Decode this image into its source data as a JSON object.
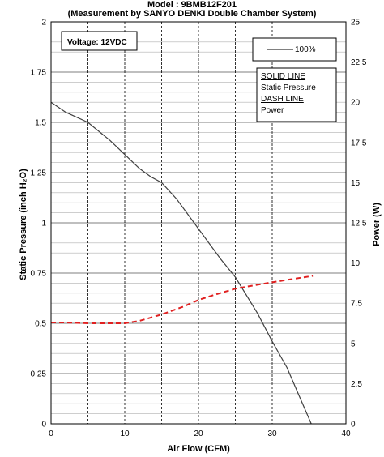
{
  "chart_data": {
    "type": "line",
    "title": "Model : 9BMB12F201",
    "subtitle": "(Measurement by SANYO DENKI Double Chamber System)",
    "xlabel": "Air Flow (CFM)",
    "ylabel_left": "Static Pressure (inch H₂O)",
    "ylabel_right": "Power (W)",
    "xlim": [
      0,
      40
    ],
    "ylim_left": [
      0,
      2
    ],
    "ylim_right": [
      0,
      25
    ],
    "x_ticks": [
      "0",
      "10",
      "20",
      "30",
      "40"
    ],
    "y_left_ticks": [
      "0",
      "0.25",
      "0.5",
      "0.75",
      "1",
      "1.25",
      "1.5",
      "1.75",
      "2"
    ],
    "y_right_ticks": [
      "0",
      "2.5",
      "5",
      "7.5",
      "10",
      "12.5",
      "15",
      "17.5",
      "20",
      "22.5",
      "25"
    ],
    "grid": true,
    "annotations": {
      "voltage": "Voltage: 12VDC",
      "legend_sample": "100%",
      "solid_line_header": "SOLID LINE",
      "solid_line_desc": "Static Pressure",
      "dash_line_header": "DASH LINE",
      "dash_line_desc": "Power"
    },
    "series": [
      {
        "name": "Static Pressure",
        "style": "solid",
        "color": "#404040",
        "axis": "left",
        "x": [
          0,
          2,
          5,
          8,
          10,
          12,
          13.5,
          15,
          17,
          20,
          23,
          25,
          28,
          30,
          32,
          34,
          35.3
        ],
        "y": [
          1.6,
          1.55,
          1.5,
          1.41,
          1.34,
          1.27,
          1.23,
          1.2,
          1.12,
          0.97,
          0.82,
          0.73,
          0.55,
          0.41,
          0.28,
          0.11,
          0.0
        ]
      },
      {
        "name": "Power",
        "style": "dashed",
        "color": "#e02020",
        "axis": "right",
        "x": [
          0,
          2,
          5,
          8,
          10,
          12,
          15,
          18,
          20,
          22,
          25,
          28,
          30,
          32,
          35.5
        ],
        "y": [
          6.3,
          6.3,
          6.25,
          6.25,
          6.25,
          6.4,
          6.8,
          7.3,
          7.7,
          8.0,
          8.4,
          8.65,
          8.8,
          8.95,
          9.2
        ]
      }
    ]
  }
}
